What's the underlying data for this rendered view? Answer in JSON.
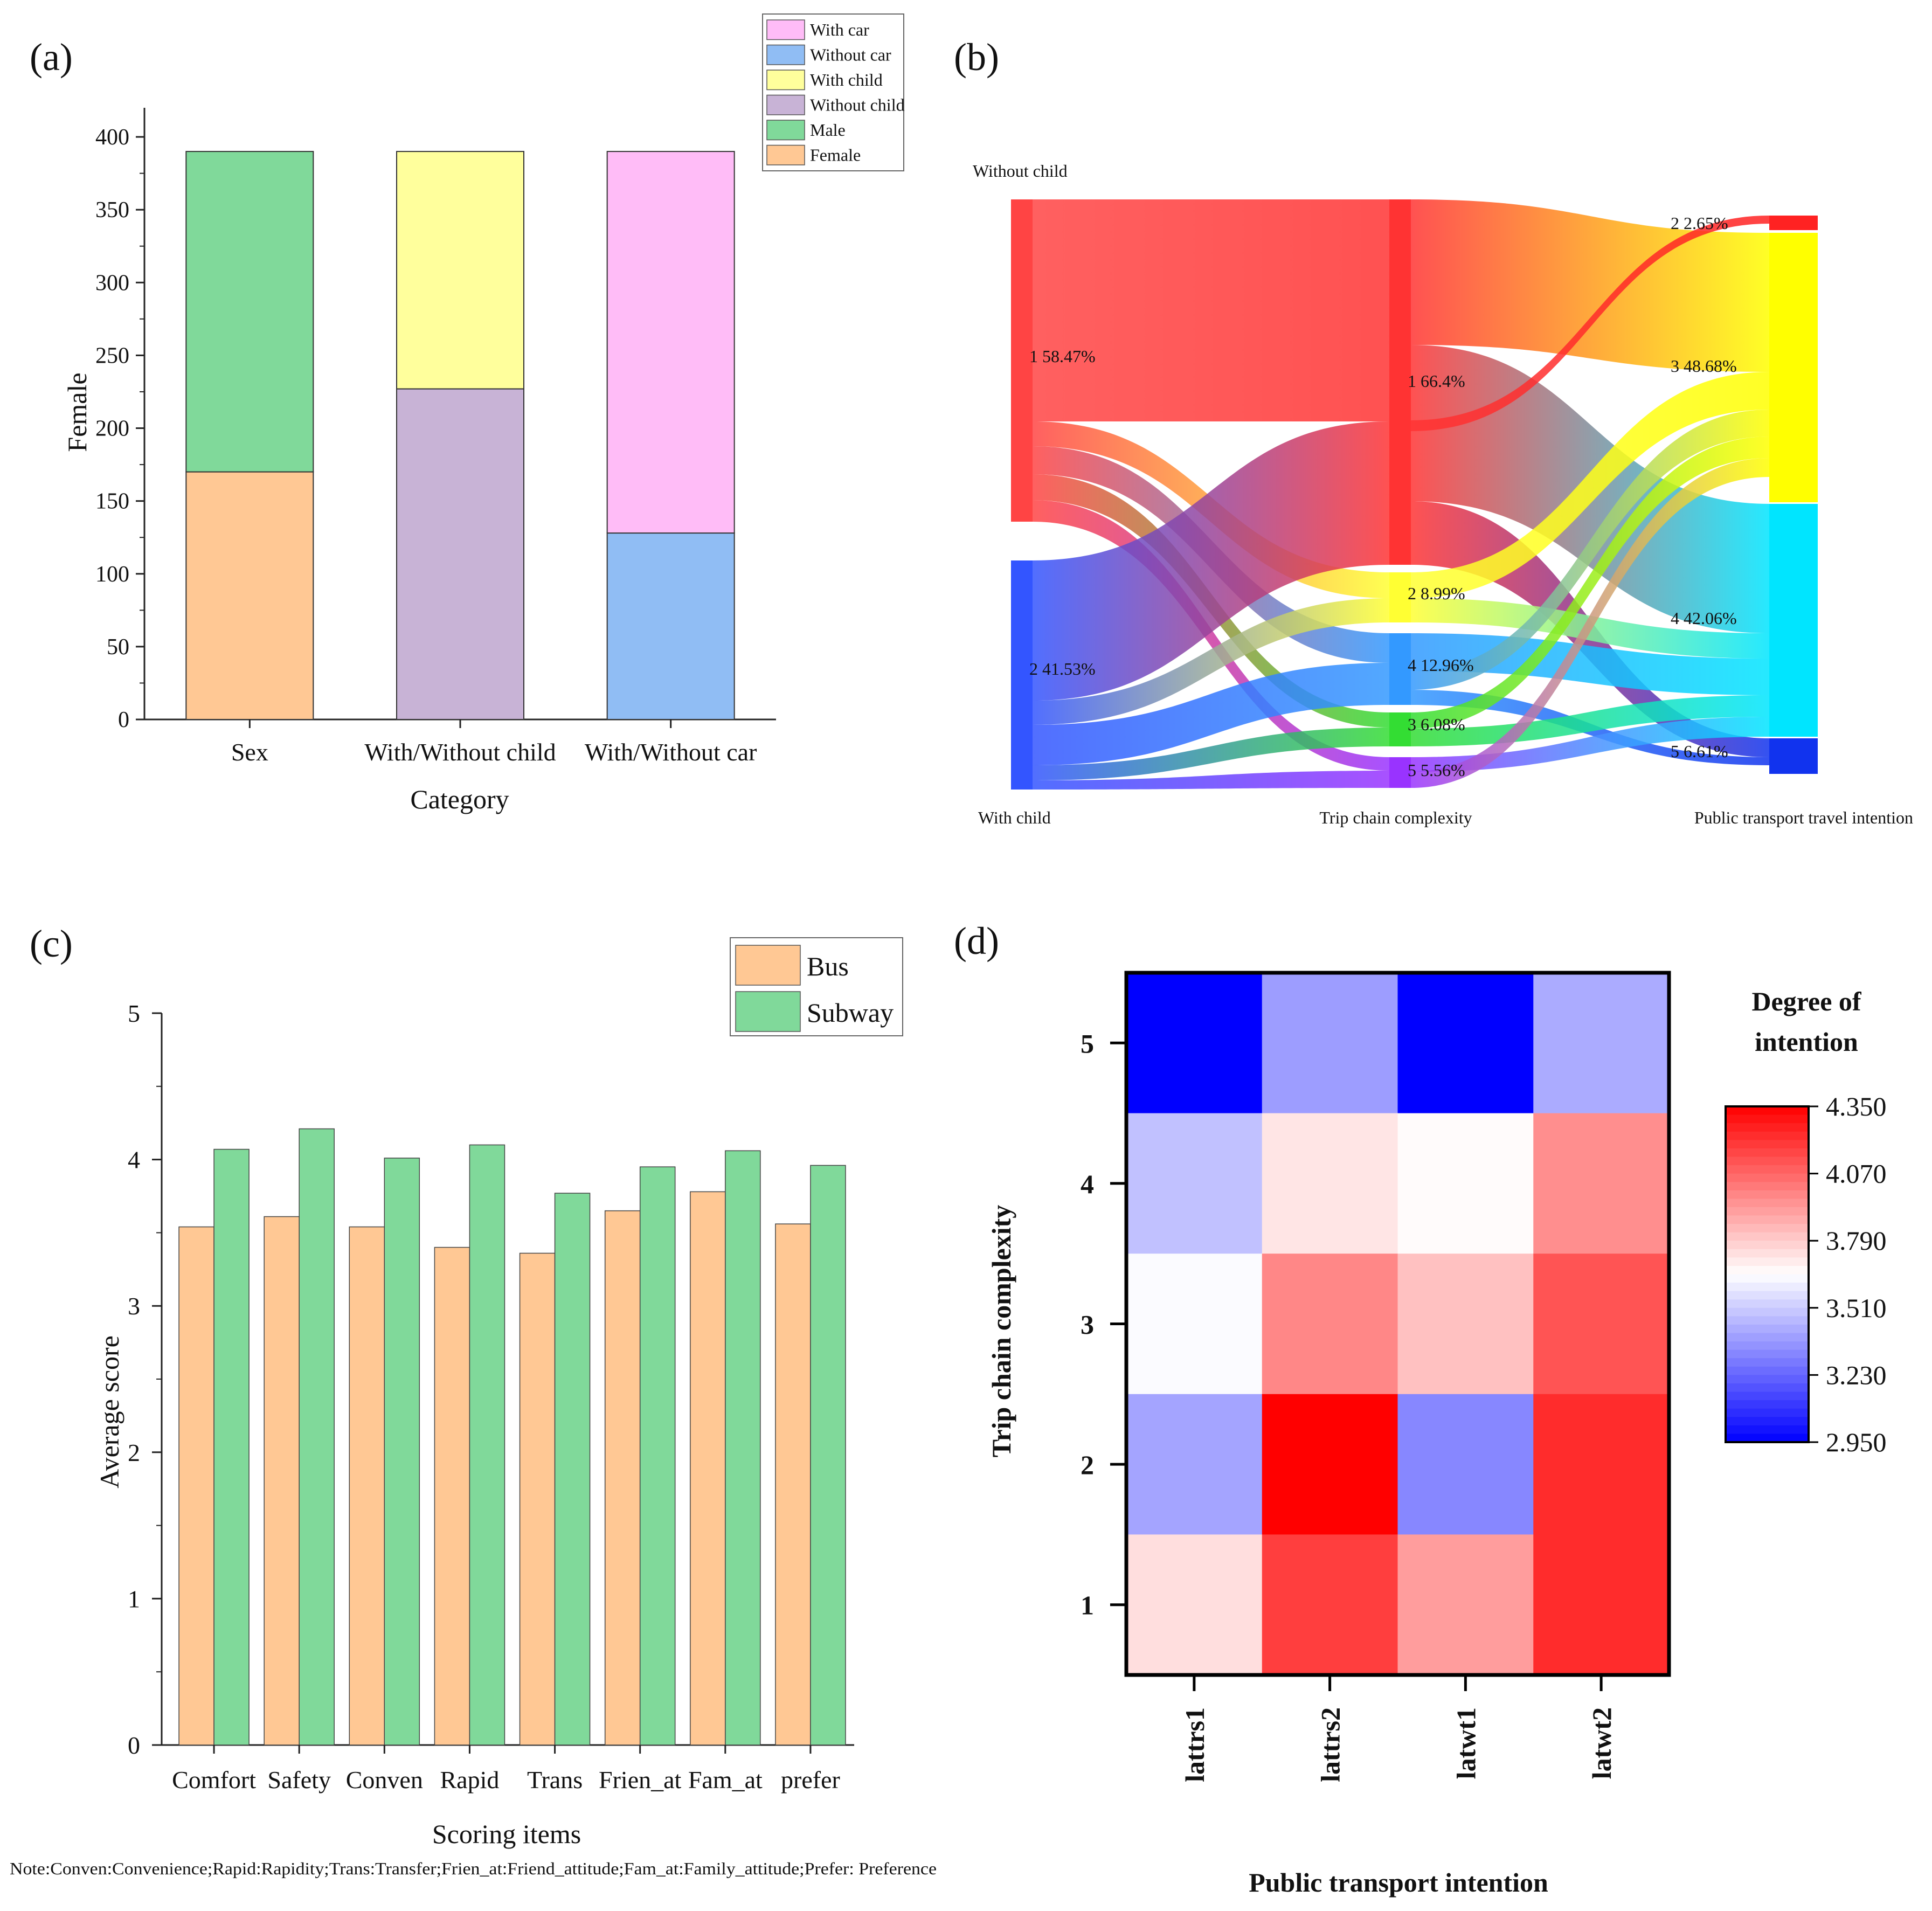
{
  "panels": {
    "a": "(a)",
    "b": "(b)",
    "c": "(c)",
    "d": "(d)"
  },
  "colors": {
    "female": "#FFC894",
    "male": "#80D99A",
    "without_child": "#C8B3D6",
    "with_child": "#FFFF9C",
    "without_car": "#90BDF4",
    "with_car": "#FFBCF7",
    "bus": "#FFC894",
    "subway": "#80D99A"
  },
  "chart_data": [
    {
      "id": "a",
      "type": "bar",
      "stacked": true,
      "categories": [
        "Sex",
        "With/Without child",
        "With/Without car"
      ],
      "series": [
        {
          "name": "Female",
          "values": [
            170,
            null,
            null
          ],
          "color": "#FFC894"
        },
        {
          "name": "Male",
          "values": [
            220,
            null,
            null
          ],
          "color": "#80D99A"
        },
        {
          "name": "Without child",
          "values": [
            null,
            227,
            null
          ],
          "color": "#C8B3D6"
        },
        {
          "name": "With child",
          "values": [
            null,
            163,
            null
          ],
          "color": "#FFFF9C"
        },
        {
          "name": "Without car",
          "values": [
            null,
            null,
            128
          ],
          "color": "#90BDF4"
        },
        {
          "name": "With car",
          "values": [
            null,
            null,
            262
          ],
          "color": "#FFBCF7"
        }
      ],
      "legend": [
        "With car",
        "Without car",
        "With child",
        "Without child",
        "Male",
        "Female"
      ],
      "legend_colors": [
        "#FFBCF7",
        "#90BDF4",
        "#FFFF9C",
        "#C8B3D6",
        "#80D99A",
        "#FFC894"
      ],
      "xlabel": "Category",
      "ylabel": "Female",
      "ylim": [
        0,
        420
      ],
      "yticks": [
        0,
        50,
        100,
        150,
        200,
        250,
        300,
        350,
        400
      ],
      "legend_position": "top-right"
    },
    {
      "id": "b",
      "type": "sankey",
      "columns": [
        "With child",
        "Trip chain complexity",
        "Public transport travel intention"
      ],
      "top_label": "Without child",
      "left_nodes": [
        {
          "label": "1  58.47%",
          "value": 58.47,
          "color": "#FF4444"
        },
        {
          "label": "2  41.53%",
          "value": 41.53,
          "color": "#3355FF"
        }
      ],
      "middle_nodes": [
        {
          "label": "1  66.4%",
          "value": 66.4,
          "color": "#FF3333"
        },
        {
          "label": "2  8.99%",
          "value": 8.99,
          "color": "#FFFF33"
        },
        {
          "label": "4  12.96%",
          "value": 12.96,
          "color": "#3399FF"
        },
        {
          "label": "3  6.08%",
          "value": 6.08,
          "color": "#33DD33"
        },
        {
          "label": "5  5.56%",
          "value": 5.56,
          "color": "#9933FF"
        }
      ],
      "right_nodes": [
        {
          "label": "2   2.65%",
          "value": 2.65,
          "color": "#FF2222"
        },
        {
          "label": "3   48.68%",
          "value": 48.68,
          "color": "#FFFF00"
        },
        {
          "label": "4   42.06%",
          "value": 42.06,
          "color": "#00E5FF"
        },
        {
          "label": "5   6.61%",
          "value": 6.61,
          "color": "#1133EE"
        }
      ]
    },
    {
      "id": "c",
      "type": "bar",
      "categories": [
        "Comfort",
        "Safety",
        "Conven",
        "Rapid",
        "Trans",
        "Frien_at",
        "Fam_at",
        "prefer"
      ],
      "series": [
        {
          "name": "Bus",
          "values": [
            3.54,
            3.61,
            3.54,
            3.4,
            3.36,
            3.65,
            3.78,
            3.56
          ],
          "color": "#FFC894"
        },
        {
          "name": "Subway",
          "values": [
            4.07,
            4.21,
            4.01,
            4.1,
            3.77,
            3.95,
            4.06,
            3.96
          ],
          "color": "#80D99A"
        }
      ],
      "xlabel": "Scoring items",
      "ylabel": "Average score",
      "ylim": [
        0,
        5
      ],
      "yticks": [
        0,
        1,
        2,
        3,
        4,
        5
      ],
      "legend_position": "top-right",
      "note": "Note:Conven:Convenience;Rapid:Rapidity;Trans:Transfer;Frien_at:Friend_attitude;Fam_at:Family_attitude;Prefer: Preference"
    },
    {
      "id": "d",
      "type": "heatmap",
      "x_categories": [
        "lattrs1",
        "lattrs2",
        "latwt1",
        "latwt2"
      ],
      "y_categories": [
        "5",
        "4",
        "3",
        "2",
        "1"
      ],
      "values": [
        [
          2.95,
          3.38,
          2.95,
          3.42
        ],
        [
          3.48,
          3.72,
          3.66,
          3.96
        ],
        [
          3.64,
          3.98,
          3.82,
          4.12
        ],
        [
          3.4,
          4.35,
          3.32,
          4.23
        ],
        [
          3.74,
          4.18,
          3.92,
          4.23
        ]
      ],
      "xlabel": "Public transport intention",
      "ylabel": "Trip chain complexity",
      "colorbar_title": [
        "Degree of",
        "intention"
      ],
      "colorbar_ticks": [
        "4.350",
        "4.070",
        "3.790",
        "3.510",
        "3.230",
        "2.950"
      ],
      "vmin": 2.95,
      "vmax": 4.35
    }
  ]
}
